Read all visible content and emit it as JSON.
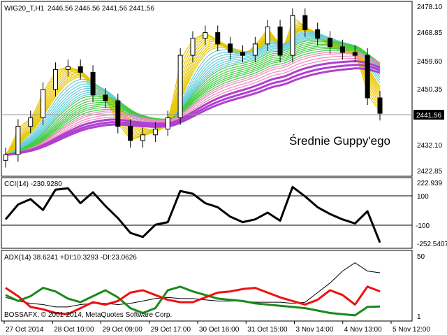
{
  "main": {
    "title": "WIG20_T,H1",
    "ohlc": "2446.56 2446.56 2441.56 2441.56",
    "annotation": "Średnie Guppy'ego",
    "current_price_label": "2441.56",
    "ticks": [
      "2478.10",
      "2468.85",
      "2459.60",
      "2450.35",
      "2432.10",
      "2422.85"
    ],
    "ylim": [
      2419.9,
      2480.0
    ]
  },
  "cci": {
    "label": "CCI(14) -230.9280",
    "ticks_top": "222.939",
    "ticks_bottom": "-252.5407",
    "level_hi": "100",
    "level_lo": "-100",
    "ylim": [
      -258,
      228
    ]
  },
  "adx": {
    "label": "ADX(14) 38.6241 +DI:10.3293 -DI:23.0626",
    "tick_top": "50",
    "tick_bottom": "1",
    "ylim": [
      0,
      55
    ]
  },
  "watermark": "BOSSAFX, © 2001-2014, MetaQuotes Software Corp.",
  "xaxis": {
    "labels": [
      "27 Oct 2014",
      "28 Oct 10:00",
      "29 Oct 09:00",
      "29 Oct 17:00",
      "30 Oct 16:00",
      "31 Oct 15:00",
      "3 Nov 14:00",
      "4 Nov 13:00",
      "5 Nov 12:00"
    ]
  },
  "colors": {
    "bull_candle": "#ffffff",
    "bear_candle": "#000000",
    "cci_line": "#000000",
    "adx_line": "#000000",
    "plus_di": "#1a8a1a",
    "minus_di": "#ee1111",
    "guppy_short": "#e8c800",
    "guppy_long_1": "#66cdd8",
    "guppy_long_2": "#44cc44",
    "guppy_long_3": "#ee88bb",
    "guppy_long_4": "#b040d0"
  },
  "chart_data": {
    "type": "candlestick",
    "x": [
      "27 Oct 2014",
      "28 Oct 10:00",
      "29 Oct 09:00",
      "29 Oct 17:00",
      "30 Oct 16:00",
      "31 Oct 15:00",
      "3 Nov 14:00",
      "4 Nov 13:00",
      "5 Nov 12:00"
    ],
    "price_close": [
      2427,
      2437,
      2440,
      2450,
      2457,
      2458,
      2456,
      2448,
      2446,
      2437,
      2432,
      2434,
      2436,
      2440,
      2462,
      2468,
      2470,
      2466,
      2463,
      2462,
      2466,
      2472,
      2462,
      2476,
      2471,
      2468,
      2465,
      2463,
      2462,
      2447,
      2441.56
    ],
    "cci": [
      -60,
      50,
      90,
      10,
      160,
      170,
      60,
      140,
      40,
      -50,
      -160,
      -190,
      -100,
      -80,
      150,
      130,
      60,
      30,
      -40,
      -80,
      -60,
      -10,
      -70,
      180,
      110,
      30,
      -20,
      -60,
      -90,
      0,
      -230.93
    ],
    "adx": [
      18,
      15,
      13,
      12,
      10,
      10,
      12,
      13,
      13,
      12,
      13,
      15,
      17,
      18,
      17,
      17,
      16,
      15,
      15,
      15,
      14,
      14,
      14,
      13,
      14,
      22,
      30,
      40,
      47,
      40,
      38.62
    ],
    "plus_di": [
      20,
      15,
      19,
      26,
      23,
      17,
      14,
      19,
      24,
      18,
      9,
      5,
      9,
      24,
      27,
      23,
      20,
      17,
      16,
      15,
      13,
      12,
      11,
      10,
      9,
      7,
      5,
      4,
      3,
      10,
      10.33
    ],
    "minus_di": [
      26,
      19,
      10,
      8,
      5,
      4,
      9,
      14,
      12,
      15,
      22,
      24,
      20,
      16,
      14,
      14,
      18,
      22,
      23,
      25,
      26,
      22,
      18,
      15,
      12,
      16,
      24,
      20,
      12,
      27,
      23.06
    ]
  }
}
